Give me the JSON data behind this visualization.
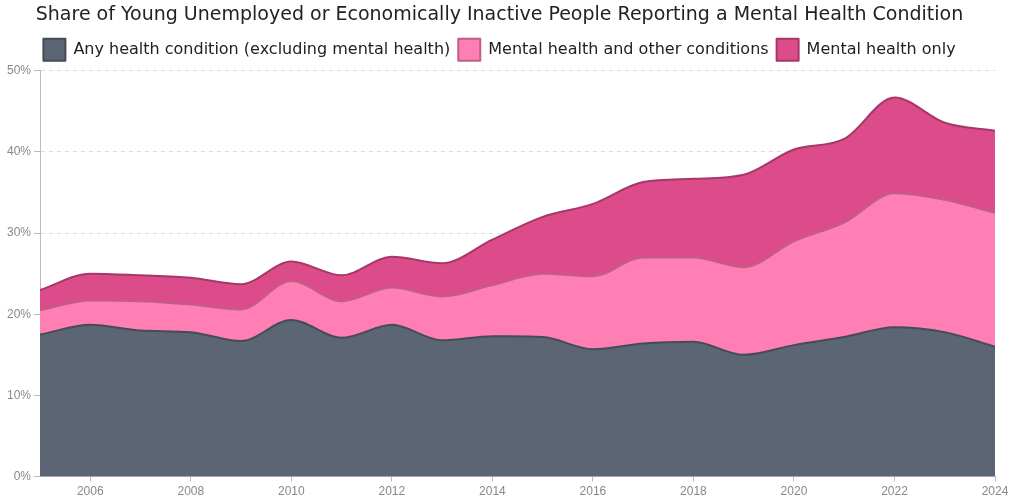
{
  "chart_data": {
    "type": "area",
    "title": "Share of Young Unemployed or Economically Inactive People Reporting a Mental Health Condition",
    "stacked": true,
    "x": [
      2005,
      2006,
      2007,
      2008,
      2009,
      2010,
      2011,
      2012,
      2013,
      2014,
      2015,
      2016,
      2017,
      2018,
      2019,
      2020,
      2021,
      2022,
      2023,
      2024
    ],
    "series": [
      {
        "name": "Any health condition (excluding mental health)",
        "color": "#5b6574",
        "values": [
          17.5,
          18.7,
          18.0,
          17.8,
          16.7,
          19.3,
          17.1,
          18.7,
          16.8,
          17.3,
          17.2,
          15.7,
          16.4,
          16.6,
          15.0,
          16.2,
          17.2,
          18.4,
          17.8,
          16.0
        ]
      },
      {
        "name": "Mental health and other conditions",
        "color": "#ff7eb3",
        "values": [
          3.0,
          3.0,
          3.6,
          3.4,
          3.9,
          4.8,
          4.5,
          4.6,
          5.4,
          6.3,
          7.8,
          9.0,
          10.6,
          10.4,
          10.8,
          12.8,
          14.1,
          16.5,
          16.3,
          16.5
        ]
      },
      {
        "name": "Mental health only",
        "color": "#dc4b8a",
        "values": [
          2.5,
          3.3,
          3.2,
          3.3,
          3.1,
          2.4,
          3.2,
          3.8,
          4.1,
          5.6,
          7.0,
          8.9,
          9.3,
          9.7,
          11.4,
          11.3,
          10.3,
          11.8,
          9.5,
          10.1
        ]
      }
    ],
    "xlim": [
      2005,
      2024
    ],
    "xticks": [
      2006,
      2008,
      2010,
      2012,
      2014,
      2016,
      2018,
      2020,
      2022,
      2024
    ],
    "ylim": [
      0,
      50
    ],
    "yticks": [
      {
        "value": 0,
        "label": "0%"
      },
      {
        "value": 10,
        "label": "10%"
      },
      {
        "value": 20,
        "label": "20%"
      },
      {
        "value": 30,
        "label": "30%"
      },
      {
        "value": 40,
        "label": "40%"
      },
      {
        "value": 50,
        "label": "50%"
      }
    ],
    "grid": "y",
    "legend": "top",
    "marker": "none",
    "line_style": "solid"
  }
}
